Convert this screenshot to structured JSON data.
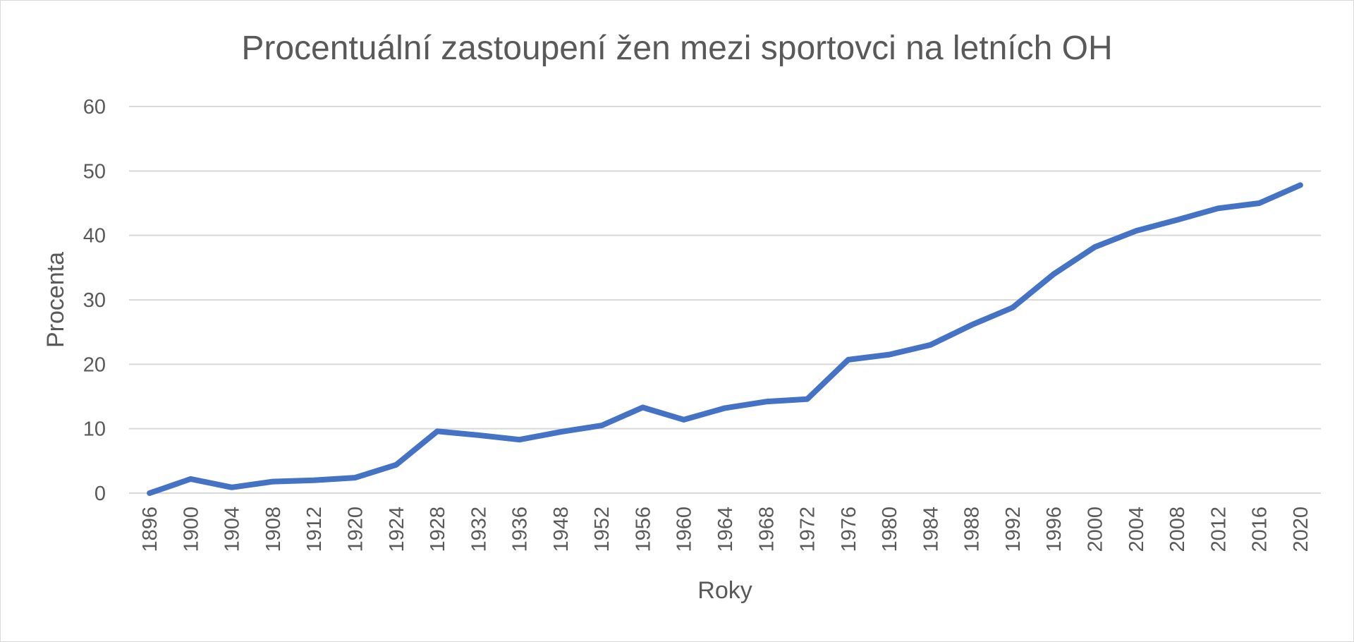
{
  "chart_data": {
    "type": "line",
    "title": "Procentuální zastoupení žen mezi sportovci na letních OH",
    "xlabel": "Roky",
    "ylabel": "Procenta",
    "ylim": [
      0,
      60
    ],
    "yticks": [
      0,
      10,
      20,
      30,
      40,
      50,
      60
    ],
    "grid": true,
    "legend": "none",
    "categories": [
      "1896",
      "1900",
      "1904",
      "1908",
      "1912",
      "1920",
      "1924",
      "1928",
      "1932",
      "1936",
      "1948",
      "1952",
      "1956",
      "1960",
      "1964",
      "1968",
      "1972",
      "1976",
      "1980",
      "1984",
      "1988",
      "1992",
      "1996",
      "2000",
      "2004",
      "2008",
      "2012",
      "2016",
      "2020"
    ],
    "series": [
      {
        "color": "#4472c4",
        "values": [
          0,
          2.2,
          0.9,
          1.8,
          2.0,
          2.4,
          4.4,
          9.6,
          9.0,
          8.3,
          9.5,
          10.5,
          13.3,
          11.4,
          13.2,
          14.2,
          14.6,
          20.7,
          21.5,
          23.0,
          26.1,
          28.8,
          34.0,
          38.2,
          40.7,
          42.4,
          44.2,
          45.0,
          47.8
        ]
      }
    ]
  }
}
